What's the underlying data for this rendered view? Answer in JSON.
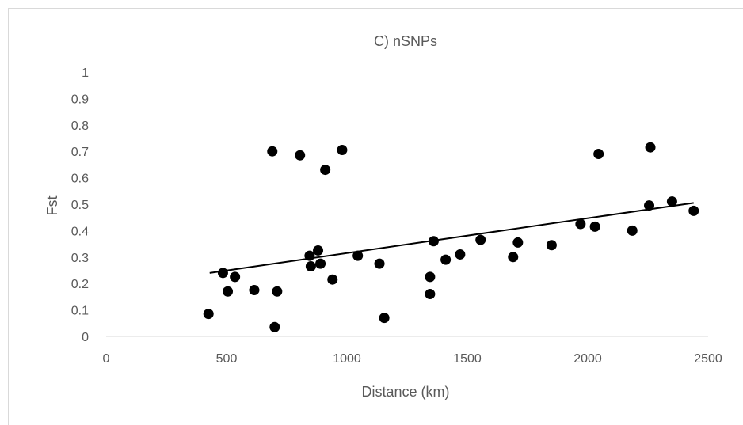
{
  "chart_data": {
    "type": "scatter",
    "title": "C) nSNPs",
    "xlabel": "Distance (km)",
    "ylabel": "Fst",
    "xlim": [
      0,
      2500
    ],
    "ylim": [
      0,
      1
    ],
    "x_ticks": [
      0,
      500,
      1000,
      1500,
      2000,
      2500
    ],
    "y_ticks": [
      0,
      0.1,
      0.2,
      0.3,
      0.4,
      0.5,
      0.6,
      0.7,
      0.8,
      0.9,
      1
    ],
    "y_tick_labels": [
      "0",
      "0.1",
      "0.2",
      "0.3",
      "0.4",
      "0.5",
      "0.6",
      "0.7",
      "0.8",
      "0.9",
      "1"
    ],
    "grid": false,
    "legend": "none",
    "marker_color": "#000000",
    "trendline": {
      "type": "linear",
      "from": [
        430,
        0.24
      ],
      "to": [
        2440,
        0.505
      ],
      "color": "#000000"
    },
    "series": [
      {
        "points": [
          [
            425,
            0.085
          ],
          [
            485,
            0.24
          ],
          [
            505,
            0.17
          ],
          [
            535,
            0.225
          ],
          [
            615,
            0.175
          ],
          [
            690,
            0.7
          ],
          [
            700,
            0.035
          ],
          [
            710,
            0.17
          ],
          [
            805,
            0.685
          ],
          [
            845,
            0.305
          ],
          [
            850,
            0.265
          ],
          [
            880,
            0.325
          ],
          [
            890,
            0.275
          ],
          [
            910,
            0.63
          ],
          [
            940,
            0.215
          ],
          [
            980,
            0.705
          ],
          [
            1045,
            0.305
          ],
          [
            1135,
            0.275
          ],
          [
            1155,
            0.07
          ],
          [
            1345,
            0.225
          ],
          [
            1345,
            0.16
          ],
          [
            1360,
            0.36
          ],
          [
            1410,
            0.29
          ],
          [
            1470,
            0.31
          ],
          [
            1555,
            0.365
          ],
          [
            1690,
            0.3
          ],
          [
            1710,
            0.355
          ],
          [
            1850,
            0.345
          ],
          [
            1970,
            0.425
          ],
          [
            2030,
            0.415
          ],
          [
            2045,
            0.69
          ],
          [
            2185,
            0.4
          ],
          [
            2255,
            0.495
          ],
          [
            2260,
            0.715
          ],
          [
            2350,
            0.51
          ],
          [
            2440,
            0.475
          ]
        ]
      }
    ]
  }
}
